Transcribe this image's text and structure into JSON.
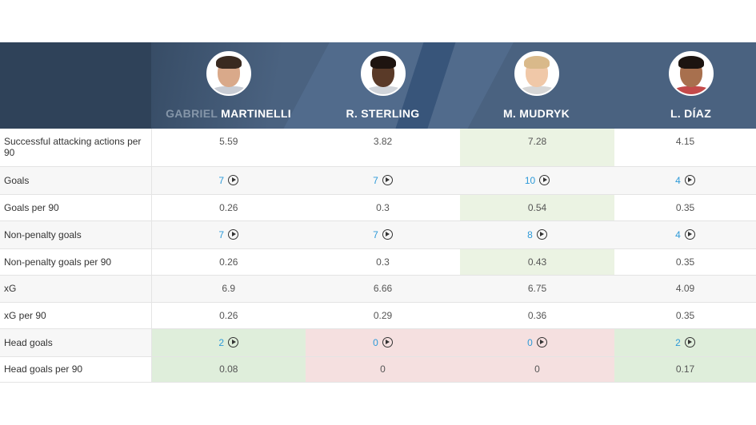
{
  "players": [
    {
      "first": "GABRIEL",
      "last": "MARTINELLI"
    },
    {
      "first": "",
      "last": "R. STERLING"
    },
    {
      "first": "",
      "last": "M. MUDRYK"
    },
    {
      "first": "",
      "last": "L. DÍAZ"
    }
  ],
  "rows": [
    {
      "label": "Successful attacking actions per 90",
      "values": [
        "5.59",
        "3.82",
        "7.28",
        "4.15"
      ]
    },
    {
      "label": "Goals",
      "values": [
        "7",
        "7",
        "10",
        "4"
      ]
    },
    {
      "label": "Goals per 90",
      "values": [
        "0.26",
        "0.3",
        "0.54",
        "0.35"
      ]
    },
    {
      "label": "Non-penalty goals",
      "values": [
        "7",
        "7",
        "8",
        "4"
      ]
    },
    {
      "label": "Non-penalty goals per 90",
      "values": [
        "0.26",
        "0.3",
        "0.43",
        "0.35"
      ]
    },
    {
      "label": "xG",
      "values": [
        "6.9",
        "6.66",
        "6.75",
        "4.09"
      ]
    },
    {
      "label": "xG per 90",
      "values": [
        "0.26",
        "0.29",
        "0.36",
        "0.35"
      ]
    },
    {
      "label": "Head goals",
      "values": [
        "2",
        "0",
        "0",
        "2"
      ]
    },
    {
      "label": "Head goals per 90",
      "values": [
        "0.08",
        "0",
        "0",
        "0.17"
      ]
    }
  ],
  "colors": {
    "header_bg": "#4a6280",
    "link": "#2e9ad8",
    "best": "#ebf3e3",
    "worst": "#f5e0e0"
  }
}
